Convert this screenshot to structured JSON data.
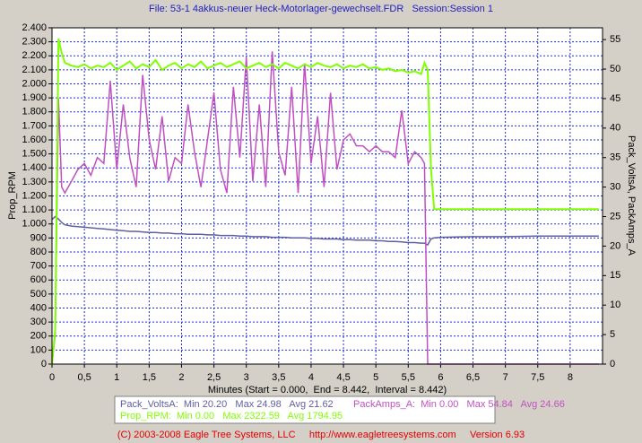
{
  "chart_data": {
    "type": "line",
    "title": "File: 53-1 4akkus-neuer Heck-Motorlager-gewechselt.FDR   Session:Session 1",
    "ylabel": "Prop_RPM",
    "y2label": "Pack_VoltsA, PackAmps_A",
    "xlabel": "Minutes (Start = 0.000,  End = 8.442,  Interval = 8.442)",
    "footer": "(C) 2003-2008 Eagle Tree Systems, LLC     http://www.eagletreesystems.com     Version 6.93",
    "grid": true,
    "x": [
      0,
      0.05,
      0.1,
      0.15,
      0.2,
      0.3,
      0.4,
      0.5,
      0.6,
      0.7,
      0.8,
      0.9,
      1.0,
      1.1,
      1.2,
      1.3,
      1.4,
      1.5,
      1.6,
      1.7,
      1.8,
      1.9,
      2.0,
      2.1,
      2.2,
      2.3,
      2.4,
      2.5,
      2.6,
      2.7,
      2.8,
      2.9,
      3.0,
      3.1,
      3.2,
      3.3,
      3.4,
      3.5,
      3.6,
      3.7,
      3.8,
      3.9,
      4.0,
      4.1,
      4.2,
      4.3,
      4.4,
      4.5,
      4.6,
      4.7,
      4.8,
      4.9,
      5.0,
      5.1,
      5.2,
      5.3,
      5.4,
      5.5,
      5.6,
      5.7,
      5.75,
      5.8,
      5.85,
      5.9,
      6.0,
      6.5,
      7.0,
      7.5,
      8.0,
      8.442
    ],
    "xlim": [
      0,
      8.5
    ],
    "xticks": [
      0,
      {
        "value": 0.5,
        "label": "0,5"
      },
      1,
      {
        "value": 1.5,
        "label": "1,5"
      },
      2,
      {
        "value": 2.5,
        "label": "2,5"
      },
      3,
      {
        "value": 3.5,
        "label": "3,5"
      },
      4,
      {
        "value": 4.5,
        "label": "4,5"
      },
      5,
      {
        "value": 5.5,
        "label": "5,5"
      },
      6,
      {
        "value": 6.5,
        "label": "6,5"
      },
      7,
      {
        "value": 7.5,
        "label": "7,5"
      },
      8
    ],
    "ylim": [
      0,
      2400
    ],
    "yticks": [
      0,
      100,
      200,
      300,
      400,
      500,
      600,
      700,
      800,
      900,
      {
        "value": 1000,
        "label": "1.000"
      },
      {
        "value": 1100,
        "label": "1.100"
      },
      {
        "value": 1200,
        "label": "1.200"
      },
      {
        "value": 1300,
        "label": "1.300"
      },
      {
        "value": 1400,
        "label": "1.400"
      },
      {
        "value": 1500,
        "label": "1.500"
      },
      {
        "value": 1600,
        "label": "1.600"
      },
      {
        "value": 1700,
        "label": "1.700"
      },
      {
        "value": 1800,
        "label": "1.800"
      },
      {
        "value": 1900,
        "label": "1.900"
      },
      {
        "value": 2000,
        "label": "2.000"
      },
      {
        "value": 2100,
        "label": "2.100"
      },
      {
        "value": 2200,
        "label": "2.200"
      },
      {
        "value": 2300,
        "label": "2.300"
      },
      {
        "value": 2400,
        "label": "2.400"
      }
    ],
    "y2lim": [
      0,
      57
    ],
    "y2ticks": [
      0,
      5,
      10,
      15,
      20,
      25,
      30,
      35,
      40,
      45,
      50,
      55
    ],
    "series": [
      {
        "name": "Pack_VoltsA",
        "stats": ":  Min 20.20   Max 24.98   Avg 21.62",
        "color": "#6060a0",
        "axis": "y2",
        "values": [
          24.5,
          25.0,
          24.6,
          24.0,
          23.6,
          23.4,
          23.3,
          23.2,
          23.1,
          23.0,
          22.9,
          22.8,
          22.7,
          22.6,
          22.5,
          22.5,
          22.4,
          22.3,
          22.3,
          22.2,
          22.2,
          22.1,
          22.1,
          22.0,
          22.0,
          22.0,
          21.9,
          21.9,
          21.8,
          21.8,
          21.8,
          21.7,
          21.7,
          21.6,
          21.6,
          21.6,
          21.5,
          21.5,
          21.5,
          21.4,
          21.4,
          21.4,
          21.3,
          21.3,
          21.2,
          21.2,
          21.2,
          21.1,
          21.1,
          21.0,
          21.0,
          21.0,
          20.9,
          20.9,
          20.8,
          20.8,
          20.7,
          20.6,
          20.6,
          20.5,
          20.5,
          20.2,
          21.2,
          21.4,
          21.5,
          21.6,
          21.6,
          21.7,
          21.7,
          21.7
        ]
      },
      {
        "name": "PackAmps_A",
        "stats": ":  Min 0.00   Max 54.84   Avg 24.66",
        "color": "#c050c0",
        "axis": "y2",
        "values": [
          0,
          5,
          45,
          30,
          29,
          31,
          33,
          34,
          32,
          35,
          34,
          48,
          33,
          44,
          35,
          30,
          49,
          38,
          33,
          42,
          31,
          35,
          34,
          44,
          36,
          30,
          38,
          46,
          33,
          29,
          47,
          35,
          52,
          31,
          44,
          30,
          53,
          36,
          32,
          47,
          29,
          51,
          34,
          42,
          30,
          46,
          33,
          38,
          39,
          37,
          37,
          36,
          37,
          36,
          36,
          35,
          43,
          34,
          36,
          35,
          34,
          0,
          0,
          0,
          0,
          0,
          0,
          0,
          0,
          0
        ]
      },
      {
        "name": "Prop_RPM",
        "stats": ":  Min 0.00   Max 2322.59   Avg 1794.95",
        "color": "#80ff00",
        "values": [
          0,
          250,
          2322,
          2220,
          2150,
          2130,
          2120,
          2140,
          2110,
          2130,
          2120,
          2150,
          2100,
          2130,
          2160,
          2110,
          2140,
          2120,
          2170,
          2100,
          2130,
          2150,
          2110,
          2140,
          2120,
          2160,
          2110,
          2130,
          2150,
          2120,
          2140,
          2160,
          2110,
          2130,
          2150,
          2120,
          2140,
          2110,
          2150,
          2130,
          2110,
          2140,
          2120,
          2150,
          2130,
          2120,
          2140,
          2110,
          2130,
          2120,
          2140,
          2110,
          2120,
          2100,
          2110,
          2090,
          2100,
          2080,
          2090,
          2070,
          2150,
          2100,
          1400,
          1105,
          1105,
          1105,
          1105,
          1105,
          1105,
          1105
        ]
      }
    ]
  }
}
